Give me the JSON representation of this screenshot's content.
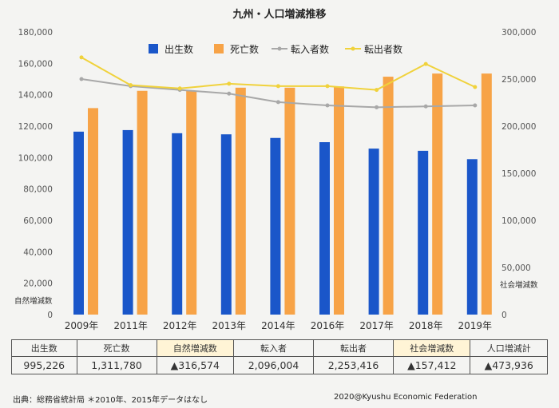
{
  "chart_data": {
    "type": "bar",
    "title": "九州・人口増減推移",
    "categories": [
      "2009年",
      "2011年",
      "2012年",
      "2013年",
      "2014年",
      "2016年",
      "2017年",
      "2018年",
      "2019年"
    ],
    "series": [
      {
        "name": "出生数",
        "type": "bar",
        "axis": "left",
        "color": "#1a56c9",
        "values": [
          116500,
          117500,
          115500,
          114800,
          112500,
          109800,
          105700,
          104300,
          99000
        ]
      },
      {
        "name": "死亡数",
        "type": "bar",
        "axis": "left",
        "color": "#f7a347",
        "values": [
          131500,
          142500,
          142500,
          144500,
          144500,
          145300,
          151500,
          153500,
          153500
        ]
      },
      {
        "name": "転入者数",
        "type": "line",
        "axis": "right",
        "color": "#a8a8a8",
        "values": [
          250000,
          242500,
          238500,
          234500,
          225500,
          222000,
          220000,
          221000,
          222000
        ]
      },
      {
        "name": "転出者数",
        "type": "line",
        "axis": "right",
        "color": "#f0d23c",
        "values": [
          273000,
          243500,
          240000,
          245000,
          242500,
          242500,
          238500,
          266000,
          241500
        ]
      }
    ],
    "y_left": {
      "label": "自然増減数",
      "min": 0,
      "max": 180000,
      "ticks": [
        "180,000",
        "160,000",
        "140,000",
        "120,000",
        "100,000",
        "80,000",
        "60,000",
        "40,000",
        "20,000",
        "0"
      ]
    },
    "y_right": {
      "label": "社会増減数",
      "min": 0,
      "max": 300000,
      "ticks": [
        "300,000",
        "250,000",
        "200,000",
        "150,000",
        "100,000",
        "50,000",
        "0"
      ]
    },
    "legend_position": "top"
  },
  "summary": {
    "headers": [
      "出生数",
      "死亡数",
      "自然増減数",
      "転入者",
      "転出者",
      "社会増減数",
      "人口増減計"
    ],
    "values": [
      "995,226",
      "1,311,780",
      "▲316,574",
      "2,096,004",
      "2,253,416",
      "▲157,412",
      "▲473,936"
    ]
  },
  "footer": {
    "source": "出典：総務省統計局 ＊2010年、2015年データはなし",
    "credit": "2020@Kyushu Economic Federation"
  }
}
